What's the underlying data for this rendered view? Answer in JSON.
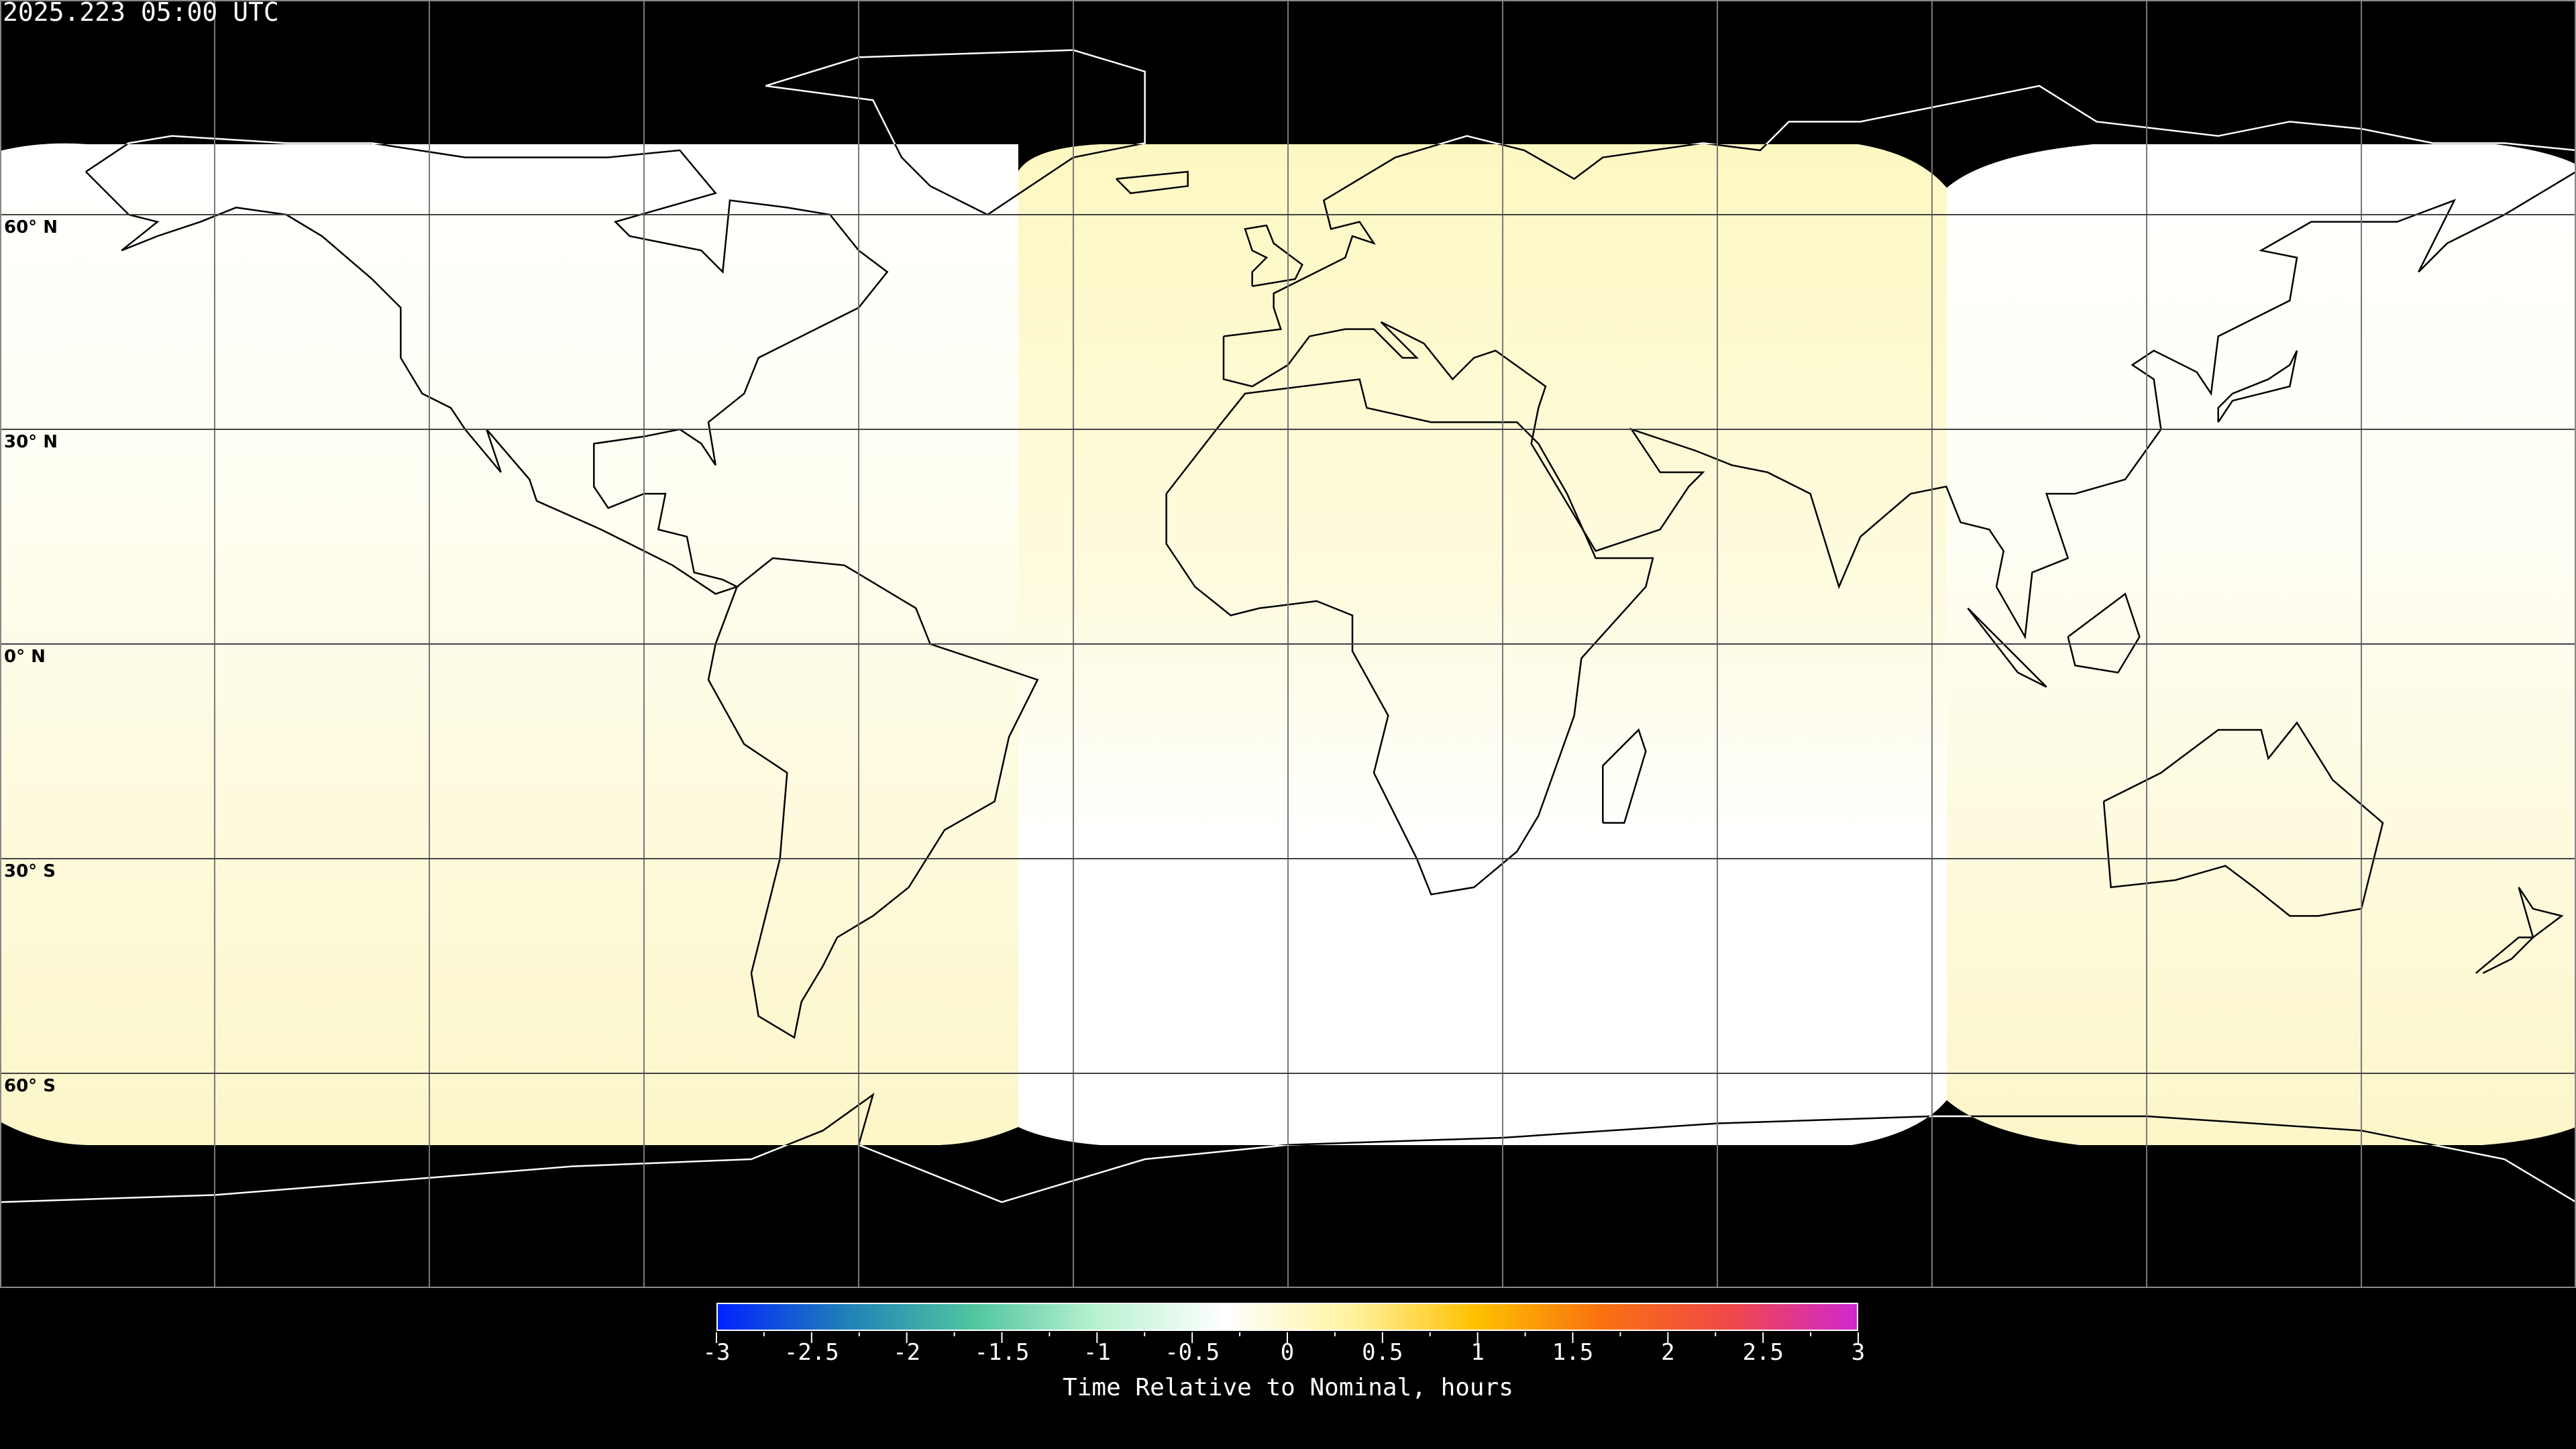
{
  "title": "2025.223 05:00 UTC",
  "map": {
    "projection": "equirectangular",
    "gridline_spacing_deg": 30,
    "lat_labels": [
      "60° N",
      "30° N",
      "0° N",
      "30° S",
      "60° S"
    ],
    "lat_values": [
      60,
      30,
      0,
      -30,
      -60
    ],
    "night_color": "#000000",
    "swath_colors": {
      "pale_yellow": "#fdf9c4",
      "white": "#ffffff"
    }
  },
  "colorbar": {
    "title": "Time Relative to Nominal, hours",
    "min": -3,
    "max": 3,
    "tick_labels": [
      "-3",
      "-2.5",
      "-2",
      "-1.5",
      "-1",
      "-0.5",
      "0",
      "0.5",
      "1",
      "1.5",
      "2",
      "2.5",
      "3"
    ],
    "colors": [
      "#0022ff",
      "#1f80b8",
      "#4fc4a0",
      "#b8f2d0",
      "#ffffff",
      "#fff3a0",
      "#ffc000",
      "#f87010",
      "#f04848",
      "#d028d0"
    ]
  }
}
